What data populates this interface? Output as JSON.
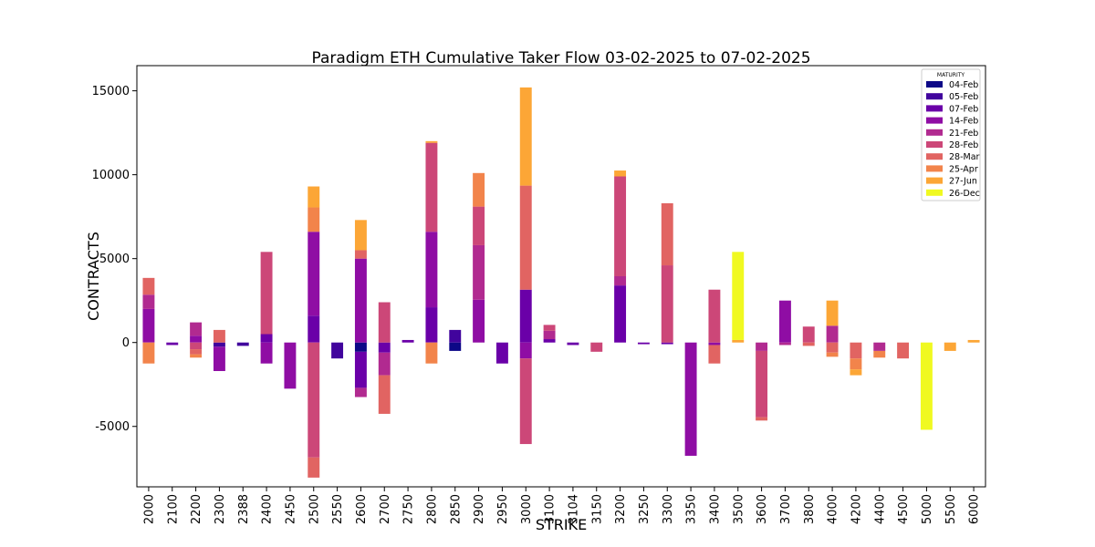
{
  "chart_data": {
    "type": "bar",
    "stacked": true,
    "title": "Paradigm ETH Cumulative Taker Flow 03-02-2025 to 07-02-2025",
    "xlabel": "STRIKE",
    "ylabel": "CONTRACTS",
    "ylim": [
      -8600,
      16500
    ],
    "yticks": [
      -5000,
      0,
      5000,
      10000,
      15000
    ],
    "grid": false,
    "legend": {
      "title": "MATURITY",
      "position": "top-right"
    },
    "categories": [
      "2000",
      "2100",
      "2200",
      "2300",
      "2388",
      "2400",
      "2450",
      "2500",
      "2550",
      "2600",
      "2700",
      "2750",
      "2800",
      "2850",
      "2900",
      "2950",
      "3000",
      "3100",
      "3104",
      "3150",
      "3200",
      "3250",
      "3300",
      "3350",
      "3400",
      "3500",
      "3600",
      "3700",
      "3800",
      "4000",
      "4200",
      "4400",
      "4500",
      "5000",
      "5500",
      "6000"
    ],
    "series": [
      {
        "name": "04-Feb",
        "color": "#0d0887",
        "values": [
          0,
          0,
          0,
          0,
          0,
          0,
          0,
          0,
          0,
          -550,
          0,
          0,
          0,
          -500,
          0,
          0,
          0,
          0,
          0,
          0,
          0,
          0,
          0,
          0,
          0,
          0,
          0,
          0,
          0,
          0,
          0,
          0,
          0,
          0,
          0,
          0
        ]
      },
      {
        "name": "05-Feb",
        "color": "#41049d",
        "values": [
          0,
          0,
          0,
          -250,
          -200,
          0,
          0,
          0,
          -950,
          0,
          0,
          0,
          0,
          750,
          0,
          0,
          0,
          0,
          0,
          0,
          0,
          0,
          0,
          0,
          0,
          0,
          0,
          0,
          0,
          0,
          0,
          0,
          0,
          0,
          0,
          0
        ]
      },
      {
        "name": "07-Feb",
        "color": "#6a00a8",
        "values": [
          0,
          -150,
          0,
          0,
          0,
          500,
          0,
          1600,
          0,
          -2150,
          -600,
          150,
          2100,
          0,
          0,
          -1250,
          3150,
          200,
          -150,
          0,
          3400,
          -100,
          -100,
          0,
          0,
          0,
          0,
          0,
          0,
          0,
          0,
          0,
          0,
          0,
          0,
          0
        ]
      },
      {
        "name": "14-Feb",
        "color": "#8f0da4",
        "values": [
          2000,
          0,
          400,
          -1450,
          0,
          -1250,
          -2750,
          5000,
          0,
          5000,
          0,
          0,
          4500,
          0,
          2550,
          0,
          -950,
          0,
          0,
          0,
          0,
          0,
          0,
          -6750,
          -150,
          0,
          0,
          2500,
          0,
          0,
          0,
          0,
          0,
          0,
          0,
          0
        ]
      },
      {
        "name": "21-Feb",
        "color": "#b12a90",
        "values": [
          850,
          0,
          800,
          0,
          0,
          0,
          0,
          0,
          0,
          -550,
          -1350,
          0,
          0,
          0,
          3250,
          0,
          0,
          500,
          0,
          0,
          550,
          0,
          0,
          0,
          0,
          0,
          -500,
          -150,
          0,
          1000,
          0,
          -500,
          0,
          0,
          0,
          0
        ]
      },
      {
        "name": "28-Feb",
        "color": "#cc4778",
        "values": [
          0,
          0,
          -400,
          0,
          0,
          4900,
          0,
          -6850,
          0,
          0,
          2400,
          0,
          5300,
          0,
          2300,
          0,
          -5100,
          350,
          0,
          -550,
          5950,
          0,
          4600,
          0,
          3150,
          0,
          -3950,
          0,
          950,
          0,
          0,
          0,
          0,
          0,
          0,
          0
        ]
      },
      {
        "name": "28-Mar",
        "color": "#e16462",
        "values": [
          1000,
          0,
          -300,
          750,
          0,
          0,
          0,
          -1200,
          0,
          500,
          -2300,
          0,
          0,
          0,
          0,
          0,
          6200,
          0,
          0,
          0,
          0,
          0,
          3700,
          0,
          -1100,
          0,
          -200,
          0,
          -200,
          -600,
          -950,
          0,
          -950,
          0,
          0,
          0
        ]
      },
      {
        "name": "25-Apr",
        "color": "#f2844b",
        "values": [
          -1250,
          0,
          -200,
          0,
          0,
          0,
          0,
          1450,
          0,
          0,
          0,
          0,
          -1250,
          0,
          2000,
          0,
          0,
          0,
          0,
          0,
          0,
          0,
          0,
          0,
          0,
          0,
          0,
          0,
          0,
          -250,
          -650,
          -400,
          0,
          0,
          0,
          0
        ]
      },
      {
        "name": "27-Jun",
        "color": "#fca636",
        "values": [
          0,
          0,
          0,
          0,
          0,
          0,
          0,
          1250,
          0,
          1800,
          0,
          0,
          100,
          0,
          0,
          0,
          5850,
          0,
          0,
          0,
          350,
          0,
          0,
          0,
          0,
          150,
          0,
          0,
          0,
          1500,
          -350,
          0,
          0,
          0,
          -500,
          150
        ]
      },
      {
        "name": "26-Dec",
        "color": "#f0f921",
        "values": [
          0,
          0,
          0,
          0,
          0,
          0,
          0,
          0,
          0,
          0,
          0,
          0,
          0,
          0,
          0,
          0,
          0,
          0,
          0,
          0,
          0,
          0,
          0,
          0,
          0,
          5250,
          0,
          0,
          0,
          0,
          0,
          0,
          0,
          -5200,
          0,
          0
        ]
      }
    ]
  }
}
